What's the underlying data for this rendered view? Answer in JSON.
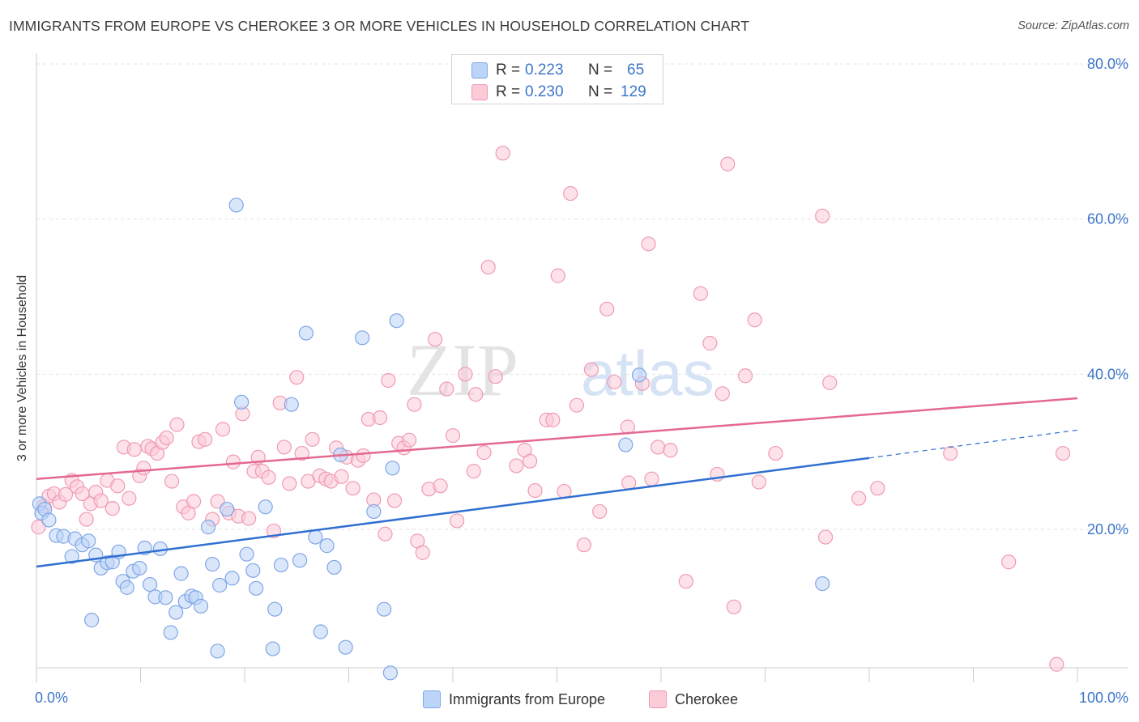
{
  "header": {
    "title": "IMMIGRANTS FROM EUROPE VS CHEROKEE 3 OR MORE VEHICLES IN HOUSEHOLD CORRELATION CHART",
    "source": "Source: ZipAtlas.com"
  },
  "legend": {
    "blue": {
      "r_label": "R =",
      "r_value": "0.223",
      "n_label": "N =",
      "n_value": "65"
    },
    "pink": {
      "r_label": "R =",
      "r_value": "0.230",
      "n_label": "N =",
      "n_value": "129"
    }
  },
  "colors": {
    "blue_fill": "#bcd4f7",
    "blue_stroke": "#7ea6e6",
    "blue_line": "#2f6fd1",
    "pink_fill": "#fbcbd8",
    "pink_stroke": "#ef9ab3",
    "pink_line": "#e4688f",
    "tick_text": "#3d76c9"
  },
  "chart_data": {
    "type": "scatter",
    "title": "IMMIGRANTS FROM EUROPE VS CHEROKEE 3 OR MORE VEHICLES IN HOUSEHOLD CORRELATION CHART",
    "xlabel": "",
    "ylabel": "3 or more Vehicles in Household",
    "xlim": [
      0,
      100
    ],
    "ylim": [
      0,
      85
    ],
    "x_tick_labels": [
      "0.0%",
      "100.0%"
    ],
    "y_ticks": [
      20,
      40,
      60,
      80
    ],
    "y_tick_labels": [
      "20.0%",
      "40.0%",
      "60.0%",
      "80.0%"
    ],
    "grid": "horizontal dashed",
    "legend_position": "bottom",
    "watermark": "ZIPatlas",
    "series": [
      {
        "name": "Immigrants from Europe",
        "color": "#7ea6e6",
        "r": 0.223,
        "n": 65,
        "trend": {
          "x": [
            0,
            80
          ],
          "y": [
            15.2,
            29.2
          ]
        },
        "trend_dashed": {
          "x": [
            80,
            100
          ],
          "y": [
            29.2,
            32.8
          ]
        },
        "points": [
          [
            0.3,
            23.3
          ],
          [
            0.5,
            22.1
          ],
          [
            0.8,
            22.6
          ],
          [
            1.2,
            21.2
          ],
          [
            1.9,
            19.2
          ],
          [
            2.6,
            19.1
          ],
          [
            3.4,
            16.5
          ],
          [
            3.7,
            18.8
          ],
          [
            4.4,
            18.0
          ],
          [
            5.0,
            18.5
          ],
          [
            5.3,
            8.3
          ],
          [
            5.7,
            16.7
          ],
          [
            6.2,
            15.0
          ],
          [
            6.8,
            15.7
          ],
          [
            7.3,
            15.8
          ],
          [
            7.9,
            17.1
          ],
          [
            8.3,
            13.3
          ],
          [
            8.7,
            12.5
          ],
          [
            9.3,
            14.6
          ],
          [
            9.9,
            15.0
          ],
          [
            10.4,
            17.6
          ],
          [
            10.9,
            12.9
          ],
          [
            11.4,
            11.3
          ],
          [
            11.9,
            17.5
          ],
          [
            12.4,
            11.2
          ],
          [
            12.9,
            6.7
          ],
          [
            13.4,
            9.3
          ],
          [
            13.9,
            14.3
          ],
          [
            14.3,
            10.7
          ],
          [
            14.9,
            11.4
          ],
          [
            15.3,
            11.2
          ],
          [
            15.8,
            10.1
          ],
          [
            16.5,
            20.3
          ],
          [
            16.9,
            15.5
          ],
          [
            17.4,
            4.3
          ],
          [
            17.6,
            12.8
          ],
          [
            18.3,
            22.6
          ],
          [
            18.8,
            13.7
          ],
          [
            19.2,
            61.8
          ],
          [
            19.7,
            36.4
          ],
          [
            20.2,
            16.8
          ],
          [
            20.8,
            14.7
          ],
          [
            21.1,
            12.4
          ],
          [
            22.0,
            22.9
          ],
          [
            22.7,
            4.6
          ],
          [
            22.9,
            9.7
          ],
          [
            23.5,
            15.4
          ],
          [
            24.5,
            36.1
          ],
          [
            25.3,
            16.0
          ],
          [
            25.9,
            45.3
          ],
          [
            26.8,
            19.0
          ],
          [
            27.3,
            6.8
          ],
          [
            27.9,
            17.9
          ],
          [
            28.6,
            15.1
          ],
          [
            29.2,
            29.6
          ],
          [
            29.7,
            4.8
          ],
          [
            31.3,
            44.7
          ],
          [
            32.4,
            22.3
          ],
          [
            33.4,
            9.7
          ],
          [
            34.0,
            1.5
          ],
          [
            34.2,
            27.9
          ],
          [
            34.6,
            46.9
          ],
          [
            56.6,
            30.9
          ],
          [
            57.9,
            39.9
          ],
          [
            75.5,
            13.0
          ]
        ]
      },
      {
        "name": "Cherokee",
        "color": "#ef9ab3",
        "r": 0.23,
        "n": 129,
        "trend": {
          "x": [
            0,
            100
          ],
          "y": [
            26.5,
            36.9
          ]
        },
        "points": [
          [
            0.2,
            20.3
          ],
          [
            0.7,
            23.0
          ],
          [
            1.2,
            24.3
          ],
          [
            1.7,
            24.6
          ],
          [
            2.2,
            23.5
          ],
          [
            2.8,
            24.5
          ],
          [
            3.4,
            26.3
          ],
          [
            3.9,
            25.5
          ],
          [
            4.4,
            24.6
          ],
          [
            4.8,
            21.3
          ],
          [
            5.2,
            23.3
          ],
          [
            5.7,
            24.8
          ],
          [
            6.2,
            23.7
          ],
          [
            6.8,
            26.3
          ],
          [
            7.3,
            22.7
          ],
          [
            7.8,
            25.6
          ],
          [
            8.4,
            30.6
          ],
          [
            8.9,
            24.0
          ],
          [
            9.4,
            30.3
          ],
          [
            9.9,
            26.9
          ],
          [
            10.3,
            27.9
          ],
          [
            10.7,
            30.7
          ],
          [
            11.1,
            30.4
          ],
          [
            11.6,
            29.8
          ],
          [
            12.1,
            31.2
          ],
          [
            12.5,
            31.8
          ],
          [
            13.0,
            26.2
          ],
          [
            13.5,
            33.5
          ],
          [
            14.1,
            22.9
          ],
          [
            14.6,
            22.1
          ],
          [
            15.1,
            23.6
          ],
          [
            15.6,
            31.3
          ],
          [
            16.2,
            31.6
          ],
          [
            16.9,
            21.3
          ],
          [
            17.4,
            23.6
          ],
          [
            17.9,
            32.9
          ],
          [
            18.5,
            22.1
          ],
          [
            18.9,
            28.7
          ],
          [
            19.4,
            21.7
          ],
          [
            19.8,
            34.9
          ],
          [
            20.4,
            21.4
          ],
          [
            20.9,
            27.5
          ],
          [
            21.3,
            29.3
          ],
          [
            21.7,
            27.5
          ],
          [
            22.3,
            26.7
          ],
          [
            22.8,
            19.8
          ],
          [
            23.4,
            36.3
          ],
          [
            23.8,
            30.6
          ],
          [
            24.3,
            25.9
          ],
          [
            25.0,
            39.6
          ],
          [
            25.5,
            29.8
          ],
          [
            26.1,
            26.2
          ],
          [
            26.5,
            31.6
          ],
          [
            27.2,
            26.9
          ],
          [
            27.8,
            26.5
          ],
          [
            28.3,
            26.2
          ],
          [
            28.8,
            30.5
          ],
          [
            29.3,
            26.8
          ],
          [
            29.8,
            29.3
          ],
          [
            30.4,
            25.3
          ],
          [
            30.9,
            28.9
          ],
          [
            31.4,
            29.5
          ],
          [
            31.9,
            34.2
          ],
          [
            32.4,
            23.8
          ],
          [
            33.0,
            34.4
          ],
          [
            33.5,
            19.4
          ],
          [
            33.8,
            39.2
          ],
          [
            34.4,
            23.7
          ],
          [
            34.8,
            31.1
          ],
          [
            35.3,
            30.5
          ],
          [
            35.8,
            31.5
          ],
          [
            36.3,
            36.1
          ],
          [
            36.6,
            18.5
          ],
          [
            37.1,
            17.0
          ],
          [
            37.7,
            25.2
          ],
          [
            38.3,
            44.5
          ],
          [
            38.8,
            25.6
          ],
          [
            39.4,
            38.1
          ],
          [
            40.0,
            32.1
          ],
          [
            40.4,
            21.1
          ],
          [
            41.2,
            40.0
          ],
          [
            42.0,
            27.5
          ],
          [
            42.2,
            37.4
          ],
          [
            43.0,
            29.9
          ],
          [
            43.4,
            53.8
          ],
          [
            44.1,
            39.7
          ],
          [
            44.8,
            68.5
          ],
          [
            46.1,
            28.2
          ],
          [
            46.9,
            30.2
          ],
          [
            47.4,
            28.8
          ],
          [
            47.9,
            25.0
          ],
          [
            49.0,
            34.1
          ],
          [
            49.6,
            34.1
          ],
          [
            50.1,
            52.7
          ],
          [
            50.7,
            24.9
          ],
          [
            51.3,
            63.3
          ],
          [
            51.9,
            36.0
          ],
          [
            52.6,
            18.0
          ],
          [
            53.3,
            40.6
          ],
          [
            54.1,
            22.3
          ],
          [
            54.8,
            48.4
          ],
          [
            55.5,
            39.0
          ],
          [
            56.8,
            33.2
          ],
          [
            56.9,
            26.0
          ],
          [
            58.2,
            38.8
          ],
          [
            58.8,
            56.8
          ],
          [
            59.1,
            26.5
          ],
          [
            59.7,
            30.6
          ],
          [
            60.9,
            30.2
          ],
          [
            62.4,
            13.3
          ],
          [
            63.8,
            50.4
          ],
          [
            64.7,
            44.0
          ],
          [
            65.4,
            27.1
          ],
          [
            65.9,
            37.5
          ],
          [
            66.4,
            67.1
          ],
          [
            67.0,
            10.0
          ],
          [
            68.1,
            39.8
          ],
          [
            69.0,
            47.0
          ],
          [
            69.4,
            26.1
          ],
          [
            71.0,
            29.8
          ],
          [
            75.5,
            60.4
          ],
          [
            75.8,
            19.0
          ],
          [
            76.2,
            38.9
          ],
          [
            79.0,
            24.0
          ],
          [
            80.8,
            25.3
          ],
          [
            87.8,
            29.8
          ],
          [
            93.4,
            15.8
          ],
          [
            98.0,
            2.6
          ],
          [
            98.6,
            29.8
          ]
        ]
      }
    ]
  },
  "bottom_legend": {
    "blue_label": "Immigrants from Europe",
    "pink_label": "Cherokee"
  },
  "axes": {
    "x_min_label": "0.0%",
    "x_max_label": "100.0%",
    "y_axis_title": "3 or more Vehicles in Household"
  }
}
